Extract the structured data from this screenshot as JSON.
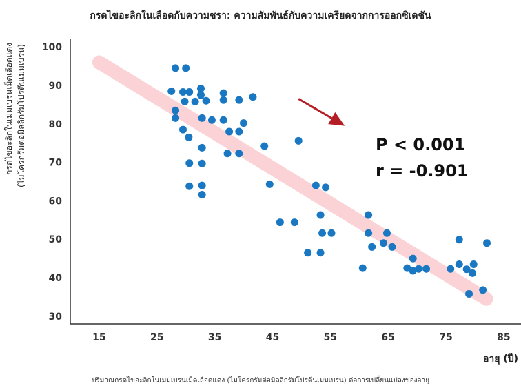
{
  "chart_data": {
    "type": "scatter",
    "title": "กรดไขอะลิกในเลือดกับความชรา: ความสัมพันธ์กับความเครียดจากการออกซิเดชัน",
    "caption": "ปริมาณกรดไขอะลิกในเมมเบรนเม็ดเลือดแดง (ไมโครกรัมต่อมิลลิกรัมโปรตีนเมมเบรน) ต่อการเปลี่ยนแปลงของอายุ",
    "xlabel": "อายุ (ปี)",
    "ylabel_line1": "กรดไขอะลิกในเมมเบรนเม็ดเลือดแดง",
    "ylabel_line2": "(ไมโครกรัมต่อมิลลิกรัมโปรตีนเมมเบรน)",
    "xlim": [
      10,
      88
    ],
    "ylim": [
      28,
      102
    ],
    "xticks": [
      15,
      25,
      35,
      45,
      55,
      65,
      75,
      85
    ],
    "yticks": [
      30,
      40,
      50,
      60,
      70,
      80,
      90,
      100
    ],
    "annotation_p": "P < 0.001",
    "annotation_r": "r = -0.901",
    "colors": {
      "points": "#1a78c2",
      "trend": "#fbd3d6",
      "arrow": "#b41e26"
    },
    "trend_line": {
      "x": [
        15,
        82
      ],
      "y": [
        96,
        34.5
      ]
    },
    "arrow": {
      "from": [
        49.5,
        86.5
      ],
      "to": [
        57.5,
        79.5
      ]
    },
    "points": [
      [
        27.5,
        88.5
      ],
      [
        28.2,
        94.5
      ],
      [
        29.5,
        88.3
      ],
      [
        30.0,
        94.5
      ],
      [
        30.6,
        88.3
      ],
      [
        32.6,
        89.2
      ],
      [
        32.6,
        87.5
      ],
      [
        28.2,
        83.5
      ],
      [
        28.2,
        81.5
      ],
      [
        29.8,
        85.8
      ],
      [
        31.6,
        85.8
      ],
      [
        33.5,
        86.0
      ],
      [
        32.8,
        81.5
      ],
      [
        34.5,
        81.0
      ],
      [
        36.5,
        88.0
      ],
      [
        36.5,
        86.2
      ],
      [
        36.5,
        81.0
      ],
      [
        39.2,
        86.2
      ],
      [
        41.6,
        87.0
      ],
      [
        29.5,
        78.5
      ],
      [
        30.5,
        76.5
      ],
      [
        37.5,
        78.0
      ],
      [
        39.2,
        78.0
      ],
      [
        40.0,
        80.2
      ],
      [
        32.8,
        73.8
      ],
      [
        30.6,
        69.8
      ],
      [
        32.8,
        69.7
      ],
      [
        37.2,
        72.3
      ],
      [
        39.2,
        72.3
      ],
      [
        43.6,
        74.2
      ],
      [
        49.5,
        75.6
      ],
      [
        30.6,
        63.8
      ],
      [
        32.8,
        64.0
      ],
      [
        32.8,
        61.6
      ],
      [
        44.5,
        64.3
      ],
      [
        52.5,
        64.0
      ],
      [
        54.2,
        63.5
      ],
      [
        46.3,
        54.4
      ],
      [
        48.8,
        54.4
      ],
      [
        53.3,
        56.3
      ],
      [
        53.6,
        51.6
      ],
      [
        55.2,
        51.6
      ],
      [
        61.6,
        56.3
      ],
      [
        61.6,
        51.6
      ],
      [
        64.8,
        51.6
      ],
      [
        64.2,
        49.0
      ],
      [
        62.2,
        48.0
      ],
      [
        65.7,
        48.0
      ],
      [
        51.1,
        46.5
      ],
      [
        53.3,
        46.5
      ],
      [
        60.6,
        42.5
      ],
      [
        68.3,
        42.5
      ],
      [
        69.3,
        45.0
      ],
      [
        69.3,
        41.8
      ],
      [
        70.3,
        42.3
      ],
      [
        71.6,
        42.3
      ],
      [
        75.8,
        42.3
      ],
      [
        77.3,
        49.9
      ],
      [
        77.3,
        43.5
      ],
      [
        78.6,
        42.2
      ],
      [
        79.8,
        43.5
      ],
      [
        79.6,
        41.2
      ],
      [
        82.1,
        49.0
      ],
      [
        81.4,
        36.8
      ],
      [
        79.0,
        35.8
      ]
    ]
  }
}
